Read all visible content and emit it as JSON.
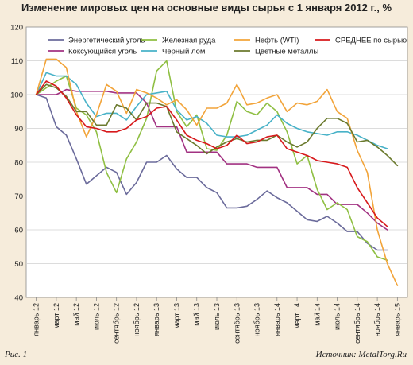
{
  "chart_data": {
    "type": "line",
    "title": "Изменение мировых цен на основные виды сырья с 1 января 2012 г., %",
    "xlabel": "",
    "ylabel": "",
    "ylim": [
      40,
      120
    ],
    "yticks": [
      40,
      50,
      60,
      70,
      80,
      90,
      100,
      110,
      120
    ],
    "categories": [
      "январь 12",
      "март 12",
      "май 12",
      "июль 12",
      "сентябрь 12",
      "ноябрь 12",
      "январь 13",
      "март 13",
      "май 13",
      "июль 13",
      "сентябрь 13",
      "ноябрь 13",
      "январь 14",
      "март 14",
      "май 14",
      "июль 14",
      "сентябрь 14",
      "ноябрь 14",
      "январь 15"
    ],
    "grid": true,
    "legend_position": "top",
    "series": [
      {
        "name": "Энергетический уголь",
        "color": "#6b6b9b",
        "x": [
          0,
          0.5,
          1,
          1.5,
          2,
          2.5,
          3,
          3.5,
          4,
          4.5,
          5,
          5.5,
          6,
          6.5,
          7,
          7.5,
          8,
          8.5,
          9,
          9.5,
          10,
          10.5,
          11,
          11.5,
          12,
          12.5,
          13,
          13.5,
          14,
          14.5,
          15,
          15.5,
          16,
          16.5,
          17,
          17.5
        ],
        "y": [
          100,
          99,
          90.5,
          88,
          81,
          73.5,
          76,
          78.5,
          77,
          70.5,
          74,
          80,
          80,
          82,
          78,
          75.5,
          75.5,
          72.5,
          71,
          66.5,
          66.5,
          67,
          69,
          71.5,
          69.5,
          68,
          65.5,
          63,
          62.5,
          64,
          62,
          59.5,
          59.5,
          56,
          54,
          54
        ]
      },
      {
        "name": "Коксующийся уголь",
        "color": "#a23282",
        "x": [
          0,
          0.5,
          1,
          1.5,
          2,
          2.5,
          3,
          3.5,
          4,
          4.5,
          5,
          5.5,
          6,
          6.5,
          7,
          7.5,
          8,
          8.5,
          9,
          9.5,
          10,
          10.5,
          11,
          11.5,
          12,
          12.5,
          13,
          13.5,
          14,
          14.5,
          15,
          15.5,
          16,
          16.5,
          17,
          17.5
        ],
        "y": [
          100,
          100,
          100,
          101.5,
          101,
          101,
          101,
          101,
          100.5,
          100.5,
          100.5,
          97.5,
          90.5,
          90.5,
          90.5,
          83,
          83,
          83,
          83,
          79.5,
          79.5,
          79.5,
          78.5,
          78.5,
          78.5,
          72.5,
          72.5,
          72.5,
          70.5,
          70.5,
          67.5,
          67.5,
          67.5,
          65,
          62,
          60
        ]
      },
      {
        "name": "Железная руда",
        "color": "#8fbf43",
        "x": [
          0,
          0.5,
          1,
          1.5,
          2,
          2.5,
          3,
          3.5,
          4,
          4.5,
          5,
          5.5,
          6,
          6.5,
          7,
          7.5,
          8,
          8.5,
          9,
          9.5,
          10,
          10.5,
          11,
          11.5,
          12,
          12.5,
          13,
          13.5,
          14,
          14.5,
          15,
          15.5,
          16,
          16.5,
          17,
          17.5
        ],
        "y": [
          100,
          102,
          104,
          105.5,
          96,
          94,
          89,
          77,
          71,
          81,
          86,
          93,
          107,
          110,
          95,
          90.5,
          94,
          84,
          83.5,
          88,
          98,
          95,
          94,
          97.5,
          95,
          89,
          79.5,
          82,
          72,
          66,
          68,
          66,
          58,
          56.5,
          52,
          51
        ]
      },
      {
        "name": "Черный лом",
        "color": "#48b2c8",
        "x": [
          0,
          0.5,
          1,
          1.5,
          2,
          2.5,
          3,
          3.5,
          4,
          4.5,
          5,
          5.5,
          6,
          6.5,
          7,
          7.5,
          8,
          8.5,
          9,
          9.5,
          10,
          10.5,
          11,
          11.5,
          12,
          12.5,
          13,
          13.5,
          14,
          14.5,
          15,
          15.5,
          16,
          16.5,
          17,
          17.5
        ],
        "y": [
          100,
          106.5,
          105.5,
          105.5,
          103,
          97.5,
          93.5,
          94.5,
          94.5,
          92.5,
          96.5,
          100,
          100.5,
          101,
          95.5,
          92.5,
          93.5,
          91.5,
          88,
          87.5,
          87.5,
          88,
          89.5,
          91,
          94,
          91.5,
          90,
          89,
          88.5,
          88,
          89,
          89,
          88,
          86.5,
          85,
          84
        ]
      },
      {
        "name": "Нефть (WTI)",
        "color": "#f2a43a",
        "x": [
          0,
          0.5,
          1,
          1.5,
          2,
          2.5,
          3,
          3.5,
          4,
          4.5,
          5,
          5.5,
          6,
          6.5,
          7,
          7.5,
          8,
          8.5,
          9,
          9.5,
          10,
          10.5,
          11,
          11.5,
          12,
          12.5,
          13,
          13.5,
          14,
          14.5,
          15,
          15.5,
          16,
          16.5,
          17,
          17.5,
          18
        ],
        "y": [
          100,
          110.5,
          110.5,
          108,
          95,
          87.5,
          94,
          103,
          101,
          94.5,
          101.5,
          100.5,
          99,
          97,
          98.5,
          95.5,
          91,
          96,
          96,
          97.5,
          103,
          97,
          97.5,
          99,
          100,
          95,
          97.5,
          97,
          98,
          101.5,
          95,
          93,
          83.5,
          77,
          60,
          50,
          43.5
        ]
      },
      {
        "name": "Цветные металлы",
        "color": "#6b7a2e",
        "x": [
          0,
          0.5,
          1,
          1.5,
          2,
          2.5,
          3,
          3.5,
          4,
          4.5,
          5,
          5.5,
          6,
          6.5,
          7,
          7.5,
          8,
          8.5,
          9,
          9.5,
          10,
          10.5,
          11,
          11.5,
          12,
          12.5,
          13,
          13.5,
          14,
          14.5,
          15,
          15.5,
          16,
          16.5,
          17,
          17.5,
          18
        ],
        "y": [
          100,
          103,
          102,
          99.5,
          95,
          95,
          91,
          91,
          97,
          96,
          92.5,
          97.5,
          97.5,
          96.5,
          89,
          87,
          85,
          82.5,
          84.5,
          86,
          87,
          86,
          86.5,
          86.5,
          88,
          86,
          84.5,
          86,
          90,
          93,
          93,
          91.5,
          86,
          86.5,
          84.5,
          82,
          79
        ]
      },
      {
        "name": "СРЕДНЕЕ по сырью",
        "color": "#d7191c",
        "x": [
          0,
          0.5,
          1,
          1.5,
          2,
          2.5,
          3,
          3.5,
          4,
          4.5,
          5,
          5.5,
          6,
          6.5,
          7,
          7.5,
          8,
          8.5,
          9,
          9.5,
          10,
          10.5,
          11,
          11.5,
          12,
          12.5,
          13,
          13.5,
          14,
          14.5,
          15,
          15.5,
          16,
          16.5,
          17,
          17.5
        ],
        "y": [
          100,
          104,
          102.5,
          99,
          94,
          90.5,
          90,
          89,
          89,
          90,
          92.5,
          93.5,
          96,
          96.5,
          92.5,
          88,
          86.5,
          85.5,
          84,
          85,
          88,
          85.5,
          86,
          87.5,
          88,
          84,
          83,
          82,
          80.5,
          80,
          79.5,
          78.5,
          72.5,
          68,
          63.5,
          61
        ]
      }
    ]
  },
  "footer": {
    "figure_label": "Рис. 1",
    "source": "Источник: MetalTorg.Ru"
  }
}
